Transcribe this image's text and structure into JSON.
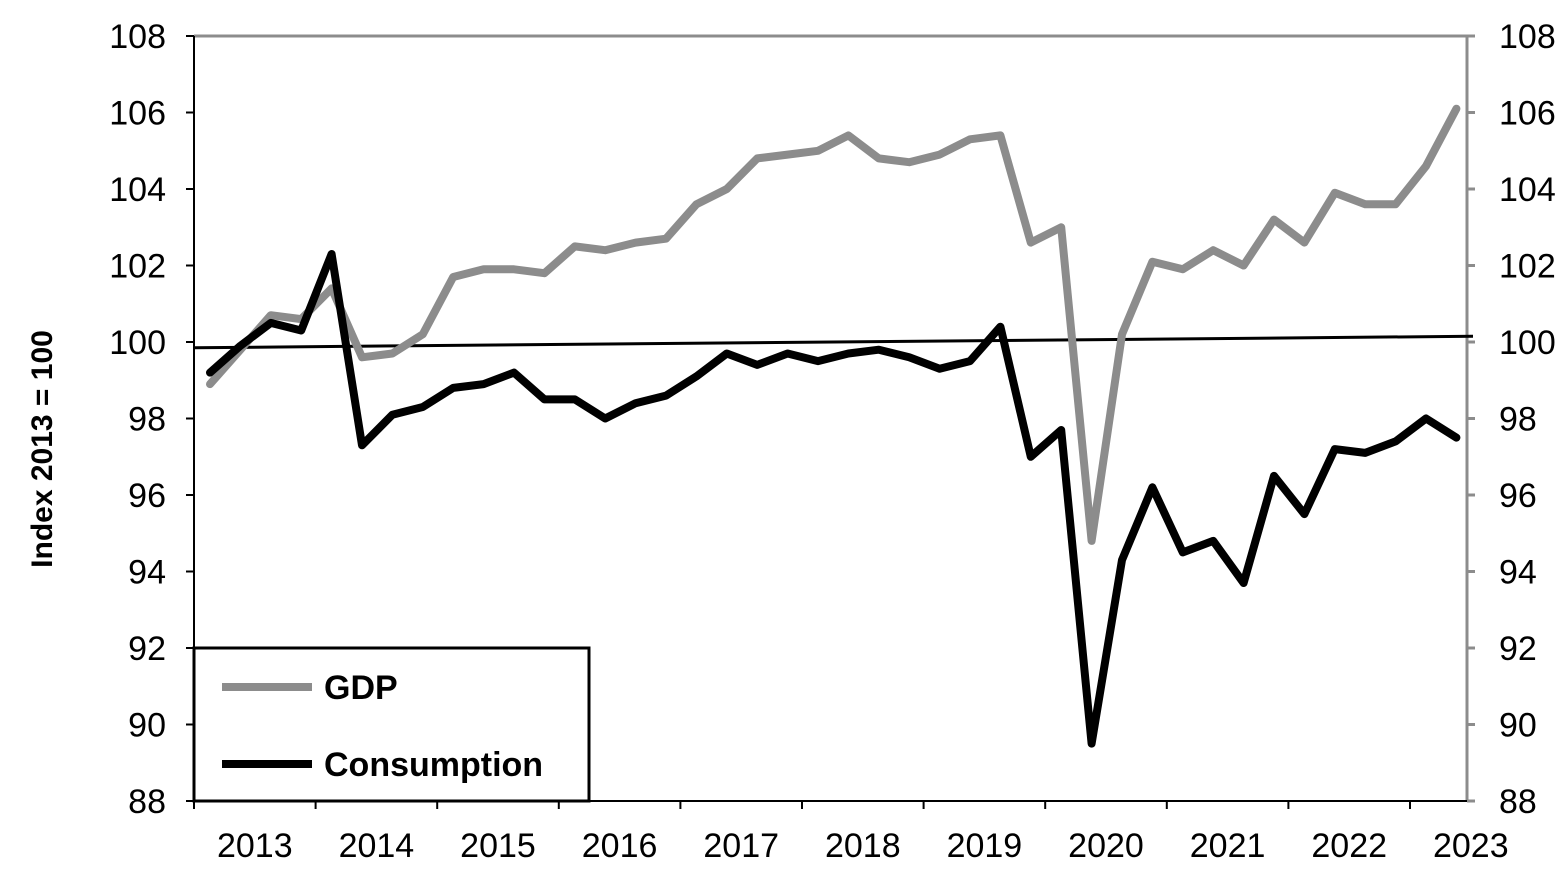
{
  "chart_data": {
    "type": "line",
    "title": "",
    "xlabel": "",
    "ylabel": "Index 2013 = 100",
    "ylim": [
      88,
      108
    ],
    "yticks": [
      88,
      90,
      92,
      94,
      96,
      98,
      100,
      102,
      104,
      106,
      108
    ],
    "xticks": [
      "2013",
      "2014",
      "2015",
      "2016",
      "2017",
      "2018",
      "2019",
      "2020",
      "2021",
      "2022",
      "2023"
    ],
    "secondary_y_axis": true,
    "grid": false,
    "legend_position": "bottom-left",
    "x": [
      "2013Q1",
      "2013Q2",
      "2013Q3",
      "2013Q4",
      "2014Q1",
      "2014Q2",
      "2014Q3",
      "2014Q4",
      "2015Q1",
      "2015Q2",
      "2015Q3",
      "2015Q4",
      "2016Q1",
      "2016Q2",
      "2016Q3",
      "2016Q4",
      "2017Q1",
      "2017Q2",
      "2017Q3",
      "2017Q4",
      "2018Q1",
      "2018Q2",
      "2018Q3",
      "2018Q4",
      "2019Q1",
      "2019Q2",
      "2019Q3",
      "2019Q4",
      "2020Q1",
      "2020Q2",
      "2020Q3",
      "2020Q4",
      "2021Q1",
      "2021Q2",
      "2021Q3",
      "2021Q4",
      "2022Q1",
      "2022Q2",
      "2022Q3",
      "2022Q4",
      "2023Q1",
      "2023Q2"
    ],
    "series": [
      {
        "name": "GDP",
        "color": "#8c8c8c",
        "values": [
          98.9,
          99.8,
          100.7,
          100.6,
          101.4,
          99.6,
          99.7,
          100.2,
          101.7,
          101.9,
          101.9,
          101.8,
          102.5,
          102.4,
          102.6,
          102.7,
          103.6,
          104.0,
          104.8,
          104.9,
          105.0,
          105.4,
          104.8,
          104.7,
          104.9,
          105.3,
          105.4,
          102.6,
          103.0,
          94.8,
          100.2,
          102.1,
          101.9,
          102.4,
          102.0,
          103.2,
          102.6,
          103.9,
          103.6,
          103.6,
          104.6,
          106.1
        ]
      },
      {
        "name": "Consumption",
        "color": "#000000",
        "values": [
          99.2,
          99.9,
          100.5,
          100.3,
          102.3,
          97.3,
          98.1,
          98.3,
          98.8,
          98.9,
          99.2,
          98.5,
          98.5,
          98.0,
          98.4,
          98.6,
          99.1,
          99.7,
          99.4,
          99.7,
          99.5,
          99.7,
          99.8,
          99.6,
          99.3,
          99.5,
          100.4,
          97.0,
          97.7,
          89.5,
          94.3,
          96.2,
          94.5,
          94.8,
          93.7,
          96.5,
          95.5,
          97.2,
          97.1,
          97.4,
          98.0,
          97.5
        ]
      }
    ],
    "reference_line": {
      "color": "#000000",
      "start": 99.85,
      "end": 100.15
    }
  }
}
